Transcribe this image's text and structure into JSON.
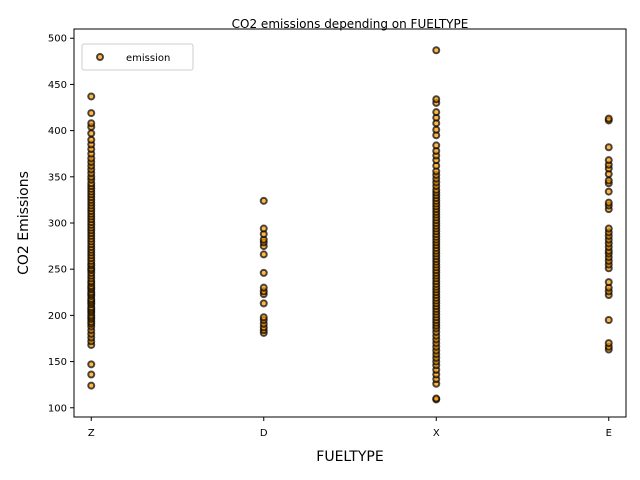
{
  "chart_data": {
    "type": "scatter",
    "title": "CO2 emissions depending on FUELTYPE",
    "xlabel": "FUELTYPE",
    "ylabel": "CO2 Emissions",
    "categories": [
      "Z",
      "D",
      "X",
      "E"
    ],
    "ylim": [
      90,
      510
    ],
    "yticks": [
      100,
      150,
      200,
      250,
      300,
      350,
      400,
      450,
      500
    ],
    "grid": false,
    "legend": {
      "position": "top-left",
      "entries": [
        "emission"
      ]
    },
    "marker": {
      "fill": "#ff9900",
      "edge": "#000000",
      "alpha": 0.7
    },
    "series": [
      {
        "name": "emission",
        "points": [
          {
            "x": "Z",
            "y": [
              124,
              136,
              147,
              168,
              172,
              176,
              180,
              184,
              188,
              191,
              193,
              196,
              198,
              200,
              203,
              205,
              207,
              209,
              212,
              214,
              216,
              218,
              221,
              223,
              225,
              228,
              230,
              232,
              235,
              237,
              240,
              243,
              246,
              249,
              251,
              254,
              256,
              259,
              262,
              265,
              268,
              271,
              274,
              277,
              280,
              283,
              286,
              289,
              292,
              295,
              298,
              301,
              304,
              307,
              310,
              313,
              316,
              319,
              322,
              325,
              328,
              331,
              334,
              337,
              340,
              343,
              347,
              350,
              354,
              358,
              362,
              366,
              370,
              375,
              380,
              385,
              390,
              397,
              404,
              408,
              419,
              437
            ]
          },
          {
            "x": "D",
            "y": [
              181,
              184,
              187,
              191,
              195,
              198,
              213,
              223,
              226,
              230,
              246,
              266,
              275,
              279,
              282,
              288,
              294,
              324
            ]
          },
          {
            "x": "X",
            "y": [
              109,
              110,
              126,
              131,
              136,
              141,
              146,
              150,
              154,
              158,
              162,
              166,
              170,
              174,
              178,
              182,
              186,
              189,
              192,
              195,
              198,
              201,
              204,
              207,
              210,
              213,
              216,
              219,
              222,
              225,
              228,
              231,
              234,
              237,
              240,
              243,
              246,
              249,
              252,
              255,
              258,
              261,
              264,
              267,
              270,
              273,
              276,
              279,
              282,
              285,
              288,
              291,
              294,
              297,
              300,
              303,
              306,
              309,
              312,
              315,
              318,
              321,
              324,
              327,
              330,
              333,
              336,
              340,
              344,
              348,
              352,
              356,
              362,
              368,
              373,
              378,
              384,
              395,
              401,
              408,
              414,
              420,
              430,
              434,
              487
            ]
          },
          {
            "x": "E",
            "y": [
              163,
              166,
              170,
              195,
              222,
              226,
              230,
              236,
              251,
              255,
              259,
              263,
              267,
              270,
              274,
              278,
              282,
              286,
              290,
              294,
              315,
              319,
              322,
              334,
              343,
              346,
              353,
              359,
              363,
              368,
              382,
              411,
              413
            ]
          }
        ]
      }
    ]
  }
}
